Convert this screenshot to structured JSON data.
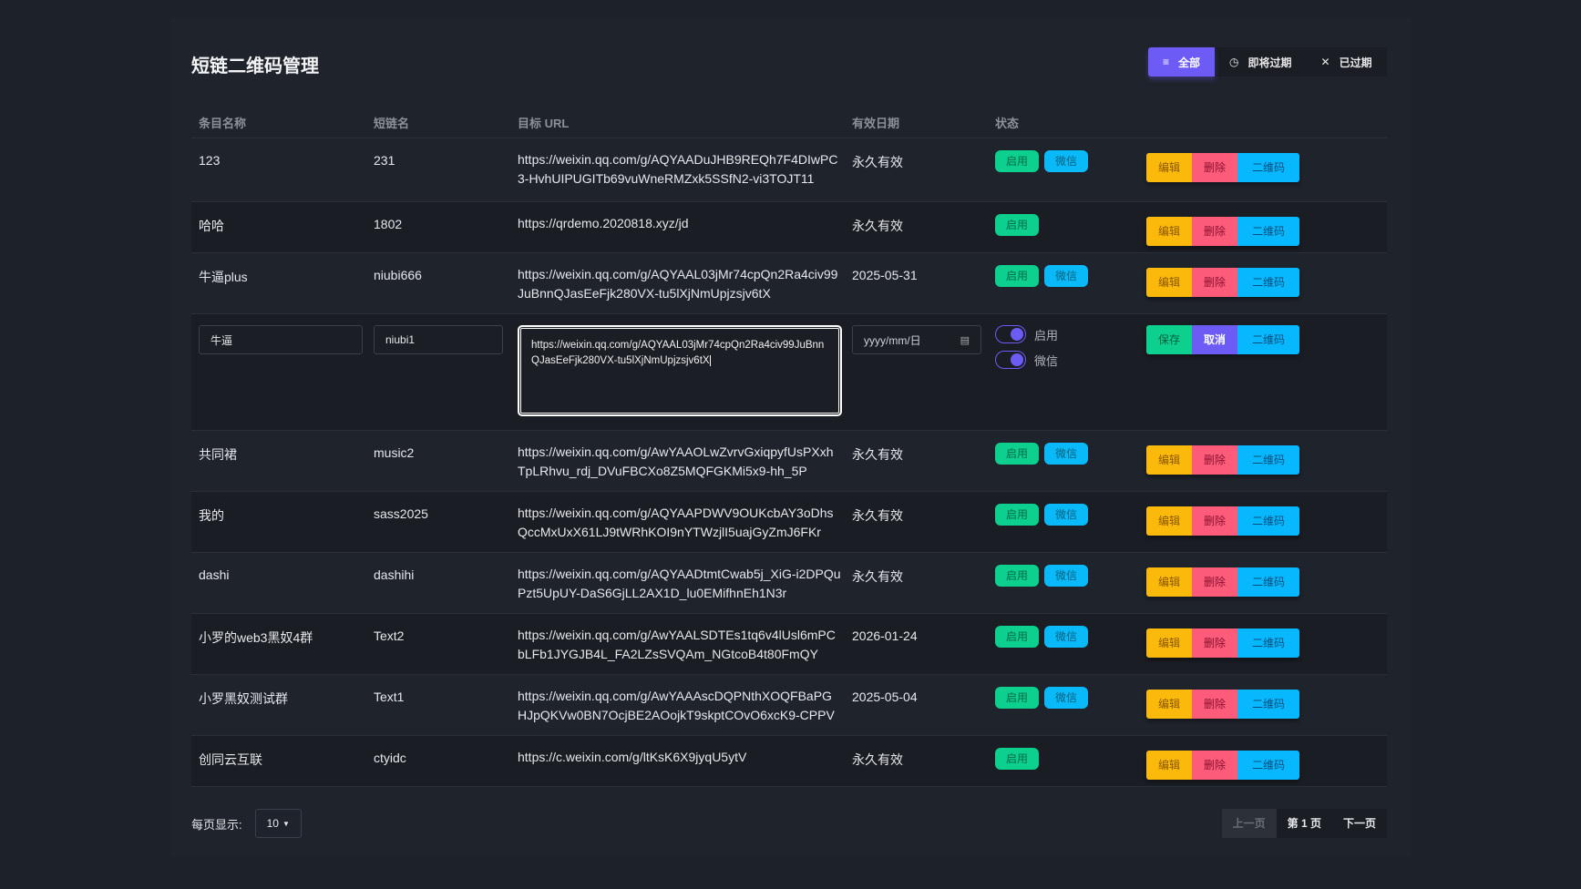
{
  "title": "短链二维码管理",
  "filters": [
    {
      "label": "全部",
      "icon": "list-icon"
    },
    {
      "label": "即将过期",
      "icon": "clock-icon"
    },
    {
      "label": "已过期",
      "icon": "close-icon"
    }
  ],
  "columns": [
    "条目名称",
    "短链名",
    "目标 URL",
    "有效日期",
    "状态"
  ],
  "actions": {
    "edit": "编辑",
    "delete": "删除",
    "qrcode": "二维码",
    "save": "保存",
    "cancel": "取消"
  },
  "tags": {
    "enabled": "启用",
    "wechat": "微信"
  },
  "rows": [
    {
      "name": "123",
      "short": "231",
      "url": "https://weixin.qq.com/g/AQYAADuJHB9REQh7F4DIwPC3-HvhUIPUGITb69vuWneRMZxk5SSfN2-vi3TOJT11",
      "date": "永久有效",
      "enabled": true,
      "wechat": true
    },
    {
      "name": "哈哈",
      "short": "1802",
      "url": "https://qrdemo.2020818.xyz/jd",
      "date": "永久有效",
      "enabled": true,
      "wechat": false
    },
    {
      "name": "牛逼plus",
      "short": "niubi666",
      "url": "https://weixin.qq.com/g/AQYAAL03jMr74cpQn2Ra4civ99JuBnnQJasEeFjk280VX-tu5lXjNmUpjzsjv6tX",
      "date": "2025-05-31",
      "enabled": true,
      "wechat": true
    },
    {
      "name": "共同裙",
      "short": "music2",
      "url": "https://weixin.qq.com/g/AwYAAOLwZvrvGxiqpyfUsPXxhTpLRhvu_rdj_DVuFBCXo8Z5MQFGKMi5x9-hh_5P",
      "date": "永久有效",
      "enabled": true,
      "wechat": true
    },
    {
      "name": "我的",
      "short": "sass2025",
      "url": "https://weixin.qq.com/g/AQYAAPDWV9OUKcbAY3oDhsQccMxUxX61LJ9tWRhKOI9nYTWzjlI5uajGyZmJ6FKr",
      "date": "永久有效",
      "enabled": true,
      "wechat": true
    },
    {
      "name": "dashi",
      "short": "dashihi",
      "url": "https://weixin.qq.com/g/AQYAADtmtCwab5j_XiG-i2DPQuPzt5UpUY-DaS6GjLL2AX1D_lu0EMifhnEh1N3r",
      "date": "永久有效",
      "enabled": true,
      "wechat": true
    },
    {
      "name": "小罗的web3黑奴4群",
      "short": "Text2",
      "url": "https://weixin.qq.com/g/AwYAALSDTEs1tq6v4lUsl6mPCbLFb1JYGJB4L_FA2LZsSVQAm_NGtcoB4t80FmQY",
      "date": "2026-01-24",
      "enabled": true,
      "wechat": true
    },
    {
      "name": "小罗黑奴测试群",
      "short": "Text1",
      "url": "https://weixin.qq.com/g/AwYAAAscDQPNthXOQFBaPGHJpQKVw0BN7OcjBE2AOojkT9skptCOvO6xcK9-CPPV",
      "date": "2025-05-04",
      "enabled": true,
      "wechat": true
    },
    {
      "name": "创同云互联",
      "short": "ctyidc",
      "url": "https://c.weixin.com/g/ltKsK6X9jyqU5ytV",
      "date": "永久有效",
      "enabled": true,
      "wechat": false
    }
  ],
  "edit_row": {
    "name": "牛逼",
    "short": "niubi1",
    "url": "https://weixin.qq.com/g/AQYAAL03jMr74cpQn2Ra4civ99JuBnnQJasEeFjk280VX-tu5lXjNmUpjzsjv6tX",
    "date_placeholder": "yyyy/mm/日",
    "toggle_enabled": "启用",
    "toggle_wechat": "微信",
    "enabled_on": true,
    "wechat_on": true
  },
  "footer": {
    "per_page_label": "每页显示:",
    "per_page": "10",
    "prev": "上一页",
    "page": "第 1 页",
    "next": "下一页"
  },
  "colors": {
    "accent": "#6c5cf5",
    "green": "#0dcf8e",
    "blue": "#08b8ff",
    "yellow": "#fbb90c",
    "red": "#fc5c7a"
  }
}
